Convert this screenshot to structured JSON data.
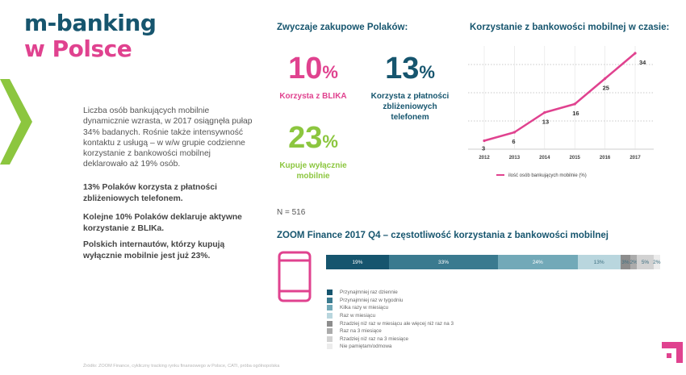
{
  "header": {
    "line1": "m-banking",
    "line2": "w Polsce"
  },
  "left": {
    "intro": "Liczba osób bankujących mobilnie dynamicznie wzrasta, w 2017 osiągnęła pułap 34% badanych. Rośnie także intensywność kontaktu z usługą – w w/w grupie codzienne korzystanie z bankowości mobilnej deklarowało aż 19% osób.",
    "p1": "13% Polaków korzysta z płatności zbliżeniowych telefonem.",
    "p2": "Kolejne 10% Polaków deklaruje aktywne korzystanie z BLIKa.",
    "p3": "Polskich internautów, którzy kupują wyłącznie mobilnie jest już 23%."
  },
  "habits": {
    "title": "Zwyczaje zakupowe Polaków:",
    "stats": [
      {
        "value": "10",
        "unit": "%",
        "label": "Korzysta z BLIKA",
        "color": "#e0428f"
      },
      {
        "value": "13",
        "unit": "%",
        "label": "Korzysta z płatności zbliżeniowych telefonem",
        "color": "#16556e"
      },
      {
        "value": "23",
        "unit": "%",
        "label": "Kupuje wyłącznie mobilnie",
        "color": "#8cc63f"
      }
    ],
    "n_label": "N = 516"
  },
  "colors": {
    "pink": "#e0428f",
    "navy": "#16556e",
    "green": "#8cc63f",
    "grid": "#c9c9c9"
  },
  "chart_data": [
    {
      "type": "line",
      "title": "Korzystanie z bankowości mobilnej w czasie:",
      "x": [
        "2012",
        "2013",
        "2014",
        "2015",
        "2016",
        "2017"
      ],
      "series": [
        {
          "name": "ilość osób bankujących mobilnie (%)",
          "values": [
            3,
            6,
            13,
            16,
            25,
            34
          ],
          "color": "#e0428f"
        }
      ],
      "ylim": [
        0,
        40
      ],
      "grid": "dotted horizontal",
      "legend": "bottom"
    },
    {
      "type": "bar",
      "title": "ZOOM Finance 2017 Q4 – częstotliwość korzystania z  bankowości mobilnej",
      "stacked": true,
      "orientation": "horizontal",
      "segments": [
        {
          "name": "Przynajmniej raz dziennie",
          "value": 19,
          "label": "19%",
          "color": "#16556e"
        },
        {
          "name": "Przynajmniej raz w tygodniu",
          "value": 33,
          "label": "33%",
          "color": "#3a7a8f"
        },
        {
          "name": "Kilka razy w miesiącu",
          "value": 24,
          "label": "24%",
          "color": "#72a9b8"
        },
        {
          "name": "Raz w miesiącu",
          "value": 13,
          "label": "13%",
          "color": "#b9d6de"
        },
        {
          "name": "Rzadziej niż raz w  miesiącu ale więcej niż raz na 3",
          "value": 3,
          "label": "3%",
          "color": "#8d8d8d"
        },
        {
          "name": "Raz na 3 miesiące",
          "value": 2,
          "label": "2%",
          "color": "#ababab"
        },
        {
          "name": "Rzadziej niż raz na 3 miesiące",
          "value": 5,
          "label": "5%",
          "color": "#d2d2d2"
        },
        {
          "name": "Nie pamiętam/odmowa",
          "value": 2,
          "label": "2%",
          "color": "#ececec"
        }
      ],
      "legend": "below"
    }
  ],
  "footnote": "Źródło: ZOOM Finance, cykliczny tracking rynku finansowego w Polsce, CATI, próba ogólnopolska"
}
